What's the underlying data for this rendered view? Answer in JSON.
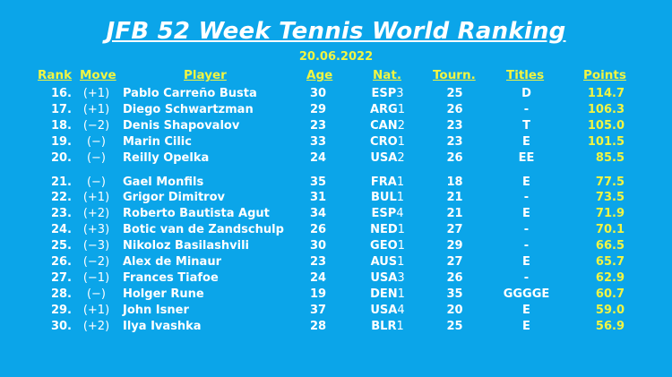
{
  "title": "JFB 52 Week Tennis World Ranking",
  "date": "20.06.2022",
  "headers": {
    "rank": "Rank",
    "move": "Move",
    "player": "Player",
    "age": "Age",
    "nat": "Nat.",
    "tourn": "Tourn.",
    "titles": "Titles",
    "points": "Points"
  },
  "colors": {
    "background": "#0BA5E9",
    "text": "#FFFFFF",
    "highlight": "#F2F542"
  },
  "rows": [
    {
      "rank": "16.",
      "move": "(+1)",
      "player": "Pablo Carreño Busta",
      "age": "30",
      "nat": "ESP",
      "nat_num": "3",
      "tourn": "25",
      "titles": "D",
      "points": "114.7"
    },
    {
      "rank": "17.",
      "move": "(+1)",
      "player": "Diego Schwartzman",
      "age": "29",
      "nat": "ARG",
      "nat_num": "1",
      "tourn": "26",
      "titles": "-",
      "points": "106.3"
    },
    {
      "rank": "18.",
      "move": "(−2)",
      "player": "Denis Shapovalov",
      "age": "23",
      "nat": "CAN",
      "nat_num": "2",
      "tourn": "23",
      "titles": "T",
      "points": "105.0"
    },
    {
      "rank": "19.",
      "move": "(−)",
      "player": "Marin Cilic",
      "age": "33",
      "nat": "CRO",
      "nat_num": "1",
      "tourn": "23",
      "titles": "E",
      "points": "101.5"
    },
    {
      "rank": "20.",
      "move": "(−)",
      "player": "Reilly Opelka",
      "age": "24",
      "nat": "USA",
      "nat_num": "2",
      "tourn": "26",
      "titles": "EE",
      "points": "85.5"
    },
    {
      "rank": "21.",
      "move": "(−)",
      "player": "Gael Monfils",
      "age": "35",
      "nat": "FRA",
      "nat_num": "1",
      "tourn": "18",
      "titles": "E",
      "points": "77.5"
    },
    {
      "rank": "22.",
      "move": "(+1)",
      "player": "Grigor Dimitrov",
      "age": "31",
      "nat": "BUL",
      "nat_num": "1",
      "tourn": "21",
      "titles": "-",
      "points": "73.5"
    },
    {
      "rank": "23.",
      "move": "(+2)",
      "player": "Roberto Bautista Agut",
      "age": "34",
      "nat": "ESP",
      "nat_num": "4",
      "tourn": "21",
      "titles": "E",
      "points": "71.9"
    },
    {
      "rank": "24.",
      "move": "(+3)",
      "player": "Botic van de Zandschulp",
      "age": "26",
      "nat": "NED",
      "nat_num": "1",
      "tourn": "27",
      "titles": "-",
      "points": "70.1"
    },
    {
      "rank": "25.",
      "move": "(−3)",
      "player": "Nikoloz Basilashvili",
      "age": "30",
      "nat": "GEO",
      "nat_num": "1",
      "tourn": "29",
      "titles": "-",
      "points": "66.5"
    },
    {
      "rank": "26.",
      "move": "(−2)",
      "player": "Alex de Minaur",
      "age": "23",
      "nat": "AUS",
      "nat_num": "1",
      "tourn": "27",
      "titles": "E",
      "points": "65.7"
    },
    {
      "rank": "27.",
      "move": "(−1)",
      "player": "Frances Tiafoe",
      "age": "24",
      "nat": "USA",
      "nat_num": "3",
      "tourn": "26",
      "titles": "-",
      "points": "62.9"
    },
    {
      "rank": "28.",
      "move": "(−)",
      "player": "Holger Rune",
      "age": "19",
      "nat": "DEN",
      "nat_num": "1",
      "tourn": "35",
      "titles": "GGGGE",
      "points": "60.7"
    },
    {
      "rank": "29.",
      "move": "(+1)",
      "player": "John Isner",
      "age": "37",
      "nat": "USA",
      "nat_num": "4",
      "tourn": "20",
      "titles": "E",
      "points": "59.0"
    },
    {
      "rank": "30.",
      "move": "(+2)",
      "player": "Ilya Ivashka",
      "age": "28",
      "nat": "BLR",
      "nat_num": "1",
      "tourn": "25",
      "titles": "E",
      "points": "56.9"
    }
  ]
}
